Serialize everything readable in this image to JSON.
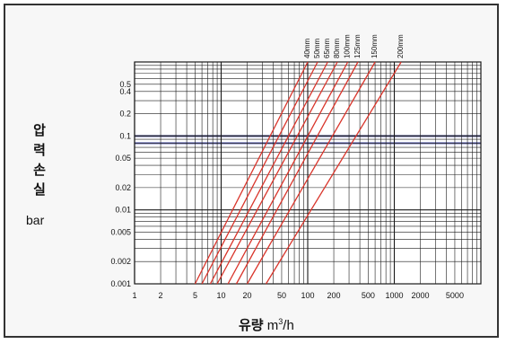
{
  "chart_data": {
    "type": "line",
    "title": "",
    "ylabel_chars": [
      "압",
      "력",
      "손",
      "실"
    ],
    "ylabel_unit": "bar",
    "xlabel_main": "유량",
    "xlabel_unit": "m",
    "xlabel_sup": "3",
    "xlabel_tail": "/h",
    "xscale": "log",
    "yscale": "log",
    "xlim": [
      1,
      10000
    ],
    "ylim": [
      0.001,
      1
    ],
    "grid": true,
    "xticks": [
      {
        "v": 1,
        "label": "1"
      },
      {
        "v": 2,
        "label": "2"
      },
      {
        "v": 5,
        "label": "5"
      },
      {
        "v": 10,
        "label": "10"
      },
      {
        "v": 20,
        "label": "20"
      },
      {
        "v": 50,
        "label": "50"
      },
      {
        "v": 100,
        "label": "100"
      },
      {
        "v": 200,
        "label": "200"
      },
      {
        "v": 500,
        "label": "500"
      },
      {
        "v": 1000,
        "label": "1000"
      },
      {
        "v": 2000,
        "label": "2000"
      },
      {
        "v": 5000,
        "label": "5000"
      }
    ],
    "yticks": [
      {
        "v": 0.001,
        "label": "0.001"
      },
      {
        "v": 0.002,
        "label": "0.002"
      },
      {
        "v": 0.005,
        "label": "0.005"
      },
      {
        "v": 0.01,
        "label": "0.01"
      },
      {
        "v": 0.02,
        "label": "0.02"
      },
      {
        "v": 0.05,
        "label": "0.05"
      },
      {
        "v": 0.1,
        "label": "0.1"
      },
      {
        "v": 0.2,
        "label": "0.2"
      },
      {
        "v": 0.4,
        "label": "0.4"
      },
      {
        "v": 0.5,
        "label": "0.5"
      }
    ],
    "highlight_y": [
      0.08,
      0.1
    ],
    "series": [
      {
        "name": "40mm",
        "x": [
          5,
          100
        ],
        "y": [
          0.001,
          1
        ]
      },
      {
        "name": "50mm",
        "x": [
          6,
          130
        ],
        "y": [
          0.001,
          1
        ]
      },
      {
        "name": "65mm",
        "x": [
          7.5,
          170
        ],
        "y": [
          0.001,
          1
        ]
      },
      {
        "name": "80mm",
        "x": [
          9,
          220
        ],
        "y": [
          0.001,
          1
        ]
      },
      {
        "name": "100mm",
        "x": [
          12,
          290
        ],
        "y": [
          0.001,
          1
        ]
      },
      {
        "name": "125mm",
        "x": [
          15,
          380
        ],
        "y": [
          0.001,
          1
        ]
      },
      {
        "name": "150mm",
        "x": [
          20,
          600
        ],
        "y": [
          0.001,
          1
        ]
      },
      {
        "name": "200mm",
        "x": [
          33,
          1200
        ],
        "y": [
          0.001,
          1
        ]
      }
    ],
    "colors": {
      "line": "#d9352b",
      "grid": "#1a1a1a",
      "highlight": "#6e72b8"
    }
  }
}
